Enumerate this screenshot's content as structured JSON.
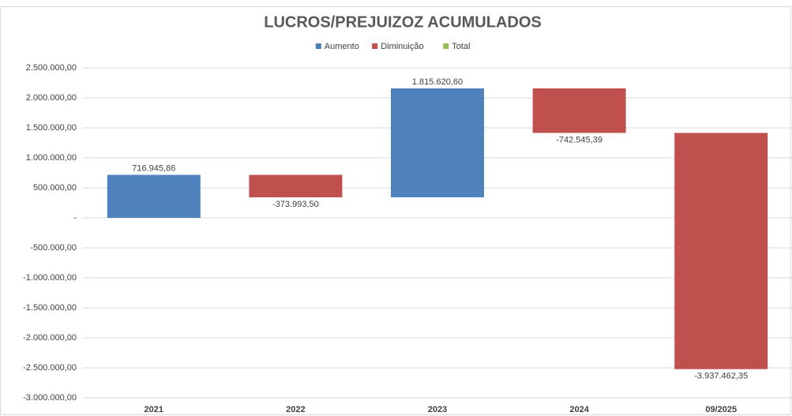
{
  "chart_data": {
    "type": "waterfall",
    "title": "LUCROS/PREJUIZOZ ACUMULADOS",
    "legend": [
      {
        "name": "Aumento",
        "color": "#4f81bd"
      },
      {
        "name": "Diminuição",
        "color": "#c0504d"
      },
      {
        "name": "Total",
        "color": "#9bbb59"
      }
    ],
    "categories": [
      "2021",
      "2022",
      "2023",
      "2024",
      "09/2025"
    ],
    "values": [
      716945.86,
      -373993.5,
      1815620.6,
      -742545.39,
      -3937462.35
    ],
    "value_labels": [
      "716.945,86",
      "-373.993,50",
      "1.815.620,60",
      "-742.545,39",
      "-3.937.462,35"
    ],
    "ylim": [
      -3000000,
      2500000
    ],
    "yticks": [
      {
        "value": -3000000,
        "label": "-3.000.000,00"
      },
      {
        "value": -2500000,
        "label": "-2.500.000,00"
      },
      {
        "value": -2000000,
        "label": "-2.000.000,00"
      },
      {
        "value": -1500000,
        "label": "-1.500.000,00"
      },
      {
        "value": -1000000,
        "label": "-1.000.000,00"
      },
      {
        "value": -500000,
        "label": "-500.000,00"
      },
      {
        "value": 0,
        "label": "-"
      },
      {
        "value": 500000,
        "label": "500.000,00"
      },
      {
        "value": 1000000,
        "label": "1.000.000,00"
      },
      {
        "value": 1500000,
        "label": "1.500.000,00"
      },
      {
        "value": 2000000,
        "label": "2.000.000,00"
      },
      {
        "value": 2500000,
        "label": "2.500.000,00"
      }
    ],
    "grid": true
  }
}
